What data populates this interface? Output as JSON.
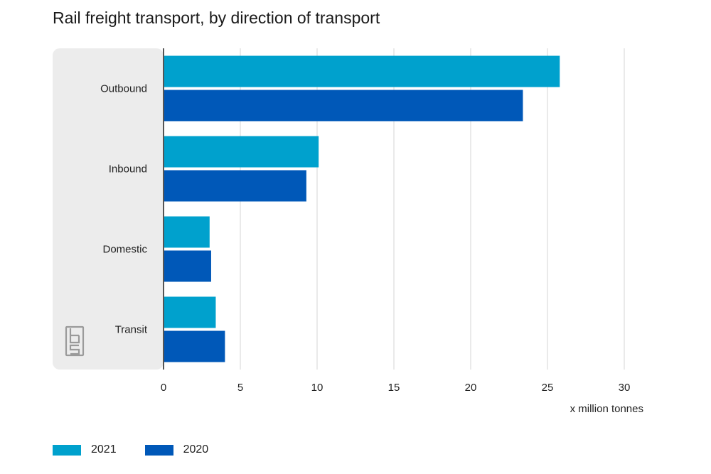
{
  "chart_data": {
    "type": "bar",
    "orientation": "horizontal",
    "title": "Rail freight transport, by direction of transport",
    "categories": [
      "Outbound",
      "Inbound",
      "Domestic",
      "Transit"
    ],
    "series": [
      {
        "name": "2021",
        "color": "#00a1cd",
        "values": [
          25.8,
          10.1,
          3.0,
          3.4
        ]
      },
      {
        "name": "2020",
        "color": "#0058b8",
        "values": [
          23.4,
          9.3,
          3.1,
          4.0
        ]
      }
    ],
    "xlabel": "x million tonnes",
    "xlim": [
      0,
      30
    ],
    "xticks": [
      0,
      5,
      10,
      15,
      20,
      25,
      30
    ],
    "grid": true,
    "legend": "bottom-left",
    "logo": "cbs"
  }
}
